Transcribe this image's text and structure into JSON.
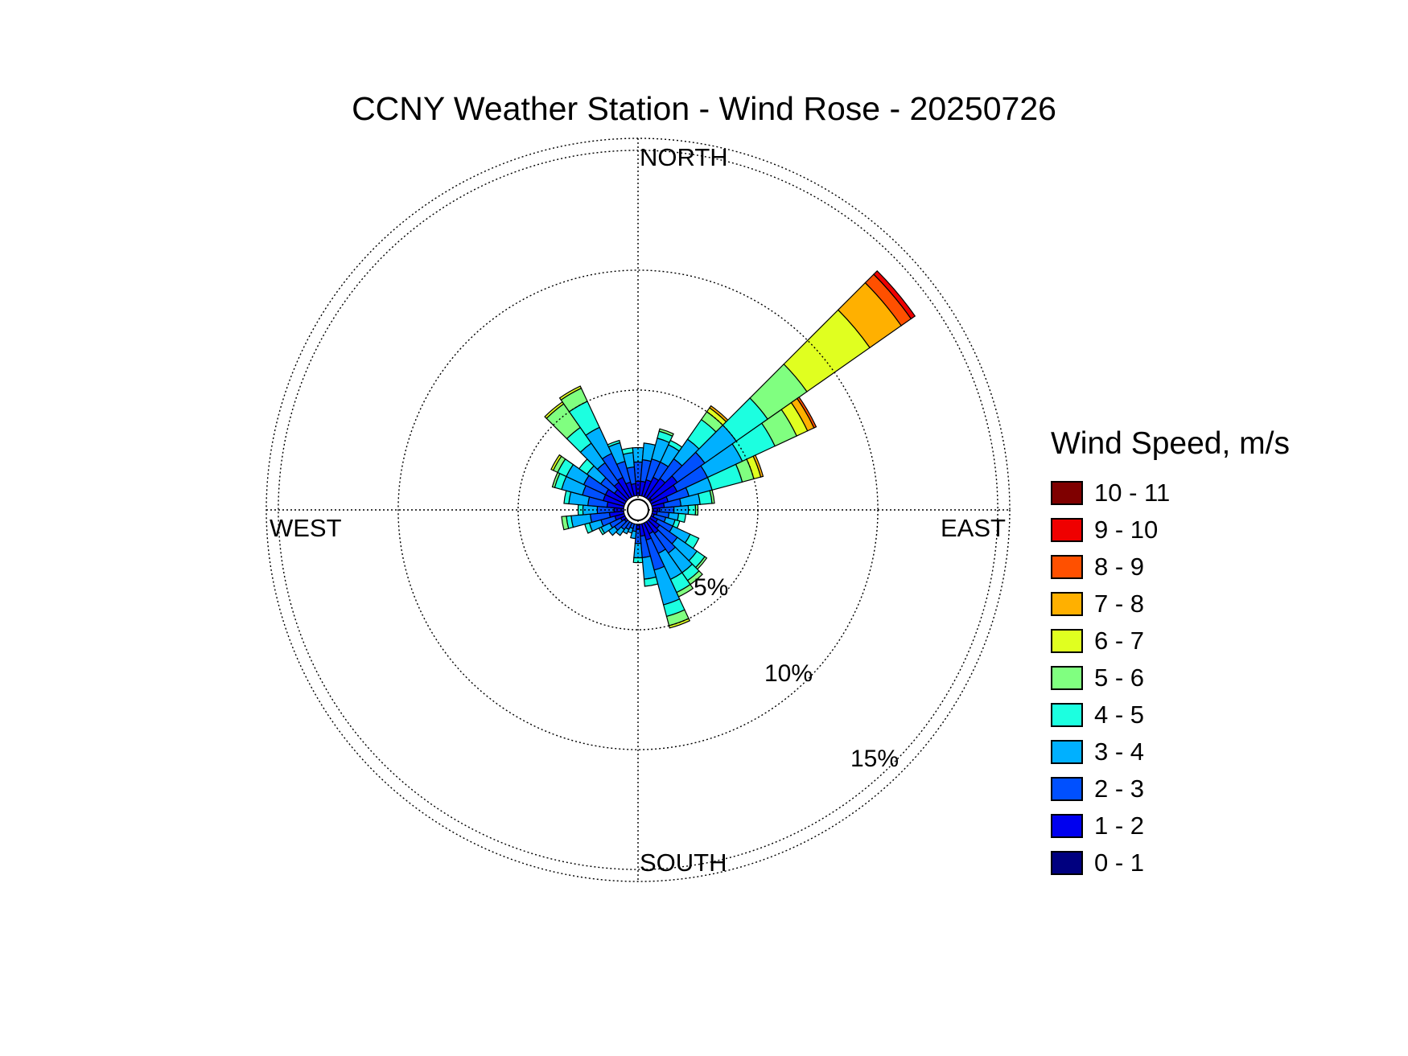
{
  "chart_data": {
    "type": "windrose",
    "title": "CCNY Weather Station - Wind Rose - 20250726",
    "direction_labels": {
      "north": "NORTH",
      "east": "EAST",
      "south": "SOUTH",
      "west": "WEST"
    },
    "radial_ticks": [
      5,
      10,
      15
    ],
    "radial_tick_labels": [
      "5%",
      "10%",
      "15%"
    ],
    "radial_max_percent": 15.5,
    "radial_unit": "percent of observations",
    "sector_width_deg": 10,
    "legend_title": "Wind Speed, m/s",
    "speed_bins": [
      {
        "label": "0 - 1",
        "color": "#00007f"
      },
      {
        "label": "1 - 2",
        "color": "#0000ef"
      },
      {
        "label": "2 - 3",
        "color": "#0050ff"
      },
      {
        "label": "3 - 4",
        "color": "#00b0ff"
      },
      {
        "label": "4 - 5",
        "color": "#1cffe0"
      },
      {
        "label": "5 - 6",
        "color": "#80ff80"
      },
      {
        "label": "6 - 7",
        "color": "#e0ff20"
      },
      {
        "label": "7 - 8",
        "color": "#ffb000"
      },
      {
        "label": "8 - 9",
        "color": "#ff5000"
      },
      {
        "label": "9 - 10",
        "color": "#ef0000"
      },
      {
        "label": "10 - 11",
        "color": "#7f0000"
      }
    ],
    "sectors": [
      {
        "direction": 0,
        "cumulative": [
          0.5,
          1.2,
          2.0,
          2.6
        ]
      },
      {
        "direction": 10,
        "cumulative": [
          0.5,
          1.2,
          2.1,
          2.8
        ]
      },
      {
        "direction": 20,
        "cumulative": [
          0.5,
          1.3,
          2.2,
          3.1,
          3.4,
          3.5
        ]
      },
      {
        "direction": 30,
        "cumulative": [
          0.6,
          1.5,
          2.2,
          3.0,
          3.2
        ]
      },
      {
        "direction": 40,
        "cumulative": [
          0.6,
          1.6,
          2.6,
          3.6,
          4.6,
          5.0,
          5.2,
          5.3
        ]
      },
      {
        "direction": 50,
        "cumulative": [
          0.7,
          2.0,
          3.4,
          5.0,
          6.6,
          8.6,
          11.8,
          13.4,
          13.9,
          14.1
        ]
      },
      {
        "direction": 60,
        "cumulative": [
          0.6,
          1.8,
          3.2,
          4.8,
          6.3,
          7.3,
          7.8,
          8.1,
          8.2
        ]
      },
      {
        "direction": 70,
        "cumulative": [
          0.5,
          1.3,
          2.2,
          3.2,
          4.5,
          5.0,
          5.3,
          5.4
        ]
      },
      {
        "direction": 80,
        "cumulative": [
          0.4,
          1.1,
          1.8,
          2.6,
          3.1,
          3.2
        ]
      },
      {
        "direction": 90,
        "cumulative": [
          0.4,
          0.9,
          1.5,
          2.1,
          2.4,
          2.5
        ]
      },
      {
        "direction": 100,
        "cumulative": [
          0.3,
          0.8,
          1.3,
          1.7,
          2.0
        ]
      },
      {
        "direction": 110,
        "cumulative": [
          0.3,
          0.7,
          1.2,
          1.6,
          1.8
        ]
      },
      {
        "direction": 120,
        "cumulative": [
          0.4,
          0.9,
          1.6,
          2.4,
          2.8
        ]
      },
      {
        "direction": 130,
        "cumulative": [
          0.4,
          1.1,
          2.0,
          3.0,
          3.4,
          3.5
        ]
      },
      {
        "direction": 140,
        "cumulative": [
          0.4,
          1.2,
          2.2,
          3.2,
          3.6,
          3.8
        ]
      },
      {
        "direction": 150,
        "cumulative": [
          0.4,
          1.1,
          2.0,
          3.2,
          3.8,
          4.0
        ]
      },
      {
        "direction": 160,
        "cumulative": [
          0.5,
          1.3,
          2.6,
          4.1,
          4.6,
          5.0,
          5.1
        ]
      },
      {
        "direction": 170,
        "cumulative": [
          0.4,
          1.1,
          2.0,
          2.9,
          3.2
        ]
      },
      {
        "direction": 180,
        "cumulative": [
          0.3,
          0.8,
          1.4,
          2.0,
          2.2
        ]
      },
      {
        "direction": 190,
        "cumulative": [
          0.3,
          0.6,
          0.9,
          1.2
        ]
      },
      {
        "direction": 200,
        "cumulative": [
          0.2,
          0.5,
          0.8,
          1.0
        ]
      },
      {
        "direction": 210,
        "cumulative": [
          0.3,
          0.6,
          0.9,
          1.1
        ]
      },
      {
        "direction": 220,
        "cumulative": [
          0.3,
          0.6,
          1.0,
          1.3
        ]
      },
      {
        "direction": 230,
        "cumulative": [
          0.3,
          0.7,
          1.2,
          1.5
        ]
      },
      {
        "direction": 240,
        "cumulative": [
          0.3,
          0.8,
          1.3,
          1.7,
          1.8
        ]
      },
      {
        "direction": 250,
        "cumulative": [
          0.4,
          1.0,
          1.6,
          2.1,
          2.3
        ]
      },
      {
        "direction": 260,
        "cumulative": [
          0.5,
          1.2,
          2.0,
          2.8,
          3.0,
          3.2
        ]
      },
      {
        "direction": 270,
        "cumulative": [
          0.4,
          1.0,
          1.7,
          2.3,
          2.5
        ]
      },
      {
        "direction": 280,
        "cumulative": [
          0.5,
          1.3,
          2.1,
          2.9,
          3.1
        ]
      },
      {
        "direction": 290,
        "cumulative": [
          0.6,
          1.5,
          2.4,
          3.3,
          3.6,
          3.7
        ]
      },
      {
        "direction": 300,
        "cumulative": [
          0.6,
          1.5,
          2.5,
          3.3,
          3.7,
          3.9,
          4.0
        ]
      },
      {
        "direction": 310,
        "cumulative": [
          0.5,
          1.2,
          1.9,
          2.6,
          3.0
        ]
      },
      {
        "direction": 320,
        "cumulative": [
          0.6,
          1.4,
          2.4,
          3.4,
          4.2,
          5.4,
          5.5
        ]
      },
      {
        "direction": 330,
        "cumulative": [
          0.6,
          1.5,
          2.6,
          3.8,
          5.0,
          5.6,
          5.7
        ]
      },
      {
        "direction": 340,
        "cumulative": [
          0.5,
          1.2,
          2.1,
          2.9,
          3.0
        ]
      },
      {
        "direction": 350,
        "cumulative": [
          0.5,
          1.1,
          1.8,
          2.4,
          2.6
        ]
      }
    ]
  }
}
